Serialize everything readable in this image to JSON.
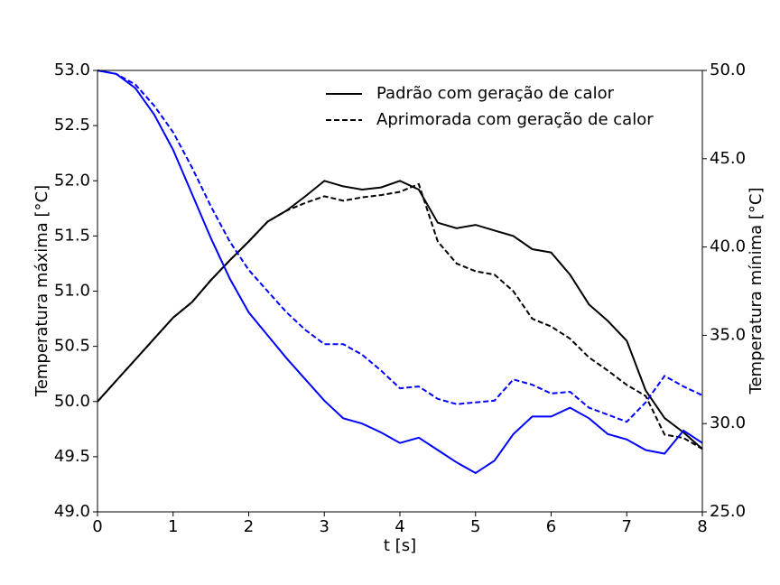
{
  "chart_data": {
    "type": "line",
    "xlabel": "t [s]",
    "ylabel": "Temperatura máxima [°C]",
    "y2label": "Temperatura mínima [°C]",
    "x": [
      0,
      0.25,
      0.5,
      0.75,
      1,
      1.25,
      1.5,
      1.75,
      2,
      2.25,
      2.5,
      2.75,
      3,
      3.25,
      3.5,
      3.75,
      4,
      4.25,
      4.5,
      4.75,
      5,
      5.25,
      5.5,
      5.75,
      6,
      6.25,
      6.5,
      6.75,
      7,
      7.25,
      7.5,
      7.75,
      8
    ],
    "xlim": [
      0,
      8
    ],
    "xticks": [
      0,
      1,
      2,
      3,
      4,
      5,
      6,
      7,
      8
    ],
    "ylim": [
      49,
      53
    ],
    "yticks": [
      {
        "value": 49,
        "label": "49.0"
      },
      {
        "value": 49.5,
        "label": "49.5"
      },
      {
        "value": 50,
        "label": "50.0"
      },
      {
        "value": 50.5,
        "label": "50.5"
      },
      {
        "value": 51,
        "label": "51.0"
      },
      {
        "value": 51.5,
        "label": "51.5"
      },
      {
        "value": 52,
        "label": "52.0"
      },
      {
        "value": 52.5,
        "label": "52.5"
      },
      {
        "value": 53,
        "label": "53.0"
      }
    ],
    "y2lim": [
      25,
      50
    ],
    "y2ticks": [
      {
        "value": 25,
        "label": "25.0"
      },
      {
        "value": 30,
        "label": "30.0"
      },
      {
        "value": 35,
        "label": "35.0"
      },
      {
        "value": 40,
        "label": "40.0"
      },
      {
        "value": 45,
        "label": "45.0"
      },
      {
        "value": 50,
        "label": "50.0"
      }
    ],
    "legend": "upper right",
    "series": [
      {
        "name": "Padrão com geração de calor",
        "color": "#000000",
        "dash": "solid",
        "axis": "y",
        "values": [
          50.0,
          50.19,
          50.38,
          50.57,
          50.76,
          50.9,
          51.1,
          51.28,
          51.45,
          51.63,
          51.73,
          51.86,
          52.0,
          51.95,
          51.92,
          51.94,
          52.0,
          51.92,
          51.62,
          51.57,
          51.6,
          51.55,
          51.5,
          51.38,
          51.35,
          51.15,
          50.88,
          50.73,
          50.55,
          50.1,
          49.85,
          49.72,
          49.57
        ]
      },
      {
        "name": "Aprimorada com geração de calor",
        "color": "#000000",
        "dash": "dashed",
        "axis": "y",
        "values": [
          50.0,
          50.19,
          50.38,
          50.57,
          50.76,
          50.9,
          51.1,
          51.28,
          51.45,
          51.63,
          51.73,
          51.8,
          51.86,
          51.82,
          51.85,
          51.87,
          51.9,
          51.97,
          51.45,
          51.25,
          51.18,
          51.15,
          51.0,
          50.75,
          50.68,
          50.57,
          50.4,
          50.28,
          50.15,
          50.05,
          49.7,
          49.67,
          49.57
        ]
      },
      {
        "color": "#0000ff",
        "dash": "solid",
        "axis": "y2",
        "values": [
          50,
          49.8,
          49.0,
          47.5,
          45.5,
          43,
          40.5,
          38.2,
          36.3,
          35.0,
          33.7,
          32.5,
          31.3,
          30.3,
          30.0,
          29.5,
          28.9,
          29.2,
          28.5,
          27.8,
          27.2,
          27.9,
          29.4,
          30.4,
          30.4,
          30.9,
          30.3,
          29.4,
          29.1,
          28.5,
          28.3,
          29.6,
          28.9
        ]
      },
      {
        "color": "#0000ff",
        "dash": "dashed",
        "axis": "y2",
        "values": [
          50,
          49.8,
          49.2,
          48.0,
          46.5,
          44.5,
          42.3,
          40.3,
          38.7,
          37.5,
          36.3,
          35.3,
          34.5,
          34.5,
          33.9,
          33.0,
          32.0,
          32.1,
          31.4,
          31.1,
          31.2,
          31.3,
          32.5,
          32.2,
          31.7,
          31.8,
          30.9,
          30.5,
          30.1,
          31.2,
          32.7,
          32.1,
          31.6
        ]
      }
    ]
  }
}
